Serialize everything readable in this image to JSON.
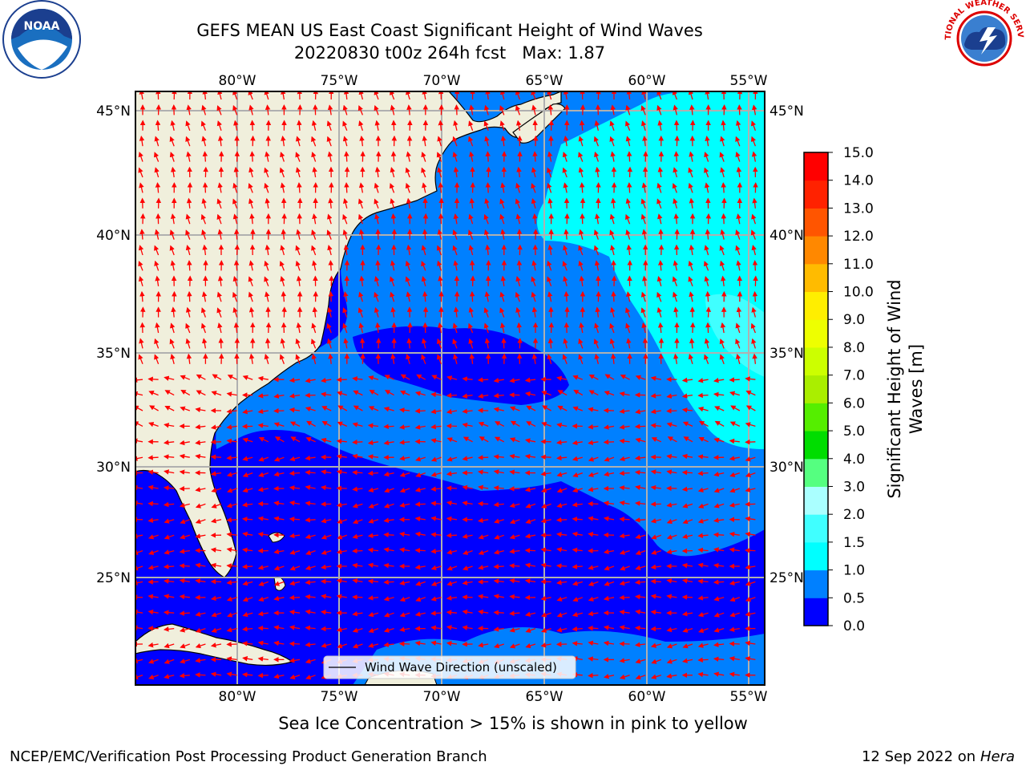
{
  "title": {
    "line1": "GEFS MEAN US East Coast Significant Height of Wind Waves",
    "line2": "20220830 t00z 264h fcst   Max: 1.87"
  },
  "axes": {
    "lon_labels": [
      "80°W",
      "75°W",
      "70°W",
      "65°W",
      "60°W",
      "55°W"
    ],
    "lat_labels": [
      "45°N",
      "40°N",
      "35°N",
      "30°N",
      "25°N"
    ],
    "lon_range": [
      -85,
      -55
    ],
    "lat_range": [
      20,
      46
    ]
  },
  "legend": {
    "label": "Wind Wave Direction (unscaled)"
  },
  "colorbar": {
    "label": "Significant Height of Wind Waves [m]",
    "label_line1": "Significant Height of Wind",
    "label_line2": "Waves [m]",
    "ticks": [
      "0.0",
      "0.5",
      "1.0",
      "1.5",
      "2.0",
      "3.0",
      "4.0",
      "5.0",
      "6.0",
      "7.0",
      "8.0",
      "9.0",
      "10.0",
      "11.0",
      "12.0",
      "13.0",
      "14.0",
      "15.0"
    ],
    "colors": [
      "#0000ff",
      "#0080ff",
      "#00ffff",
      "#40ffff",
      "#aaffff",
      "#55ff80",
      "#00dd00",
      "#55ee00",
      "#aaee00",
      "#ccff00",
      "#eeff00",
      "#ffee00",
      "#ffbb00",
      "#ff8800",
      "#ff5500",
      "#ff2200",
      "#ff0000"
    ]
  },
  "map_colors": {
    "land": "#f0efdc",
    "band_0_05": "#0000ff",
    "band_05_10": "#0080ff",
    "band_10_15": "#00ffff",
    "band_15_20": "#40ffff",
    "arrows": "#ff0000",
    "grid": "#b0b0b0"
  },
  "logos": {
    "left": "NOAA",
    "right": "NATIONAL WEATHER SERVICE"
  },
  "footer": {
    "caption": "Sea Ice Concentration > 15% is shown in pink to yellow",
    "left": "NCEP/EMC/Verification Post Processing Product Generation Branch",
    "right_date": "12 Sep 2022 on",
    "right_host": "Hera"
  }
}
